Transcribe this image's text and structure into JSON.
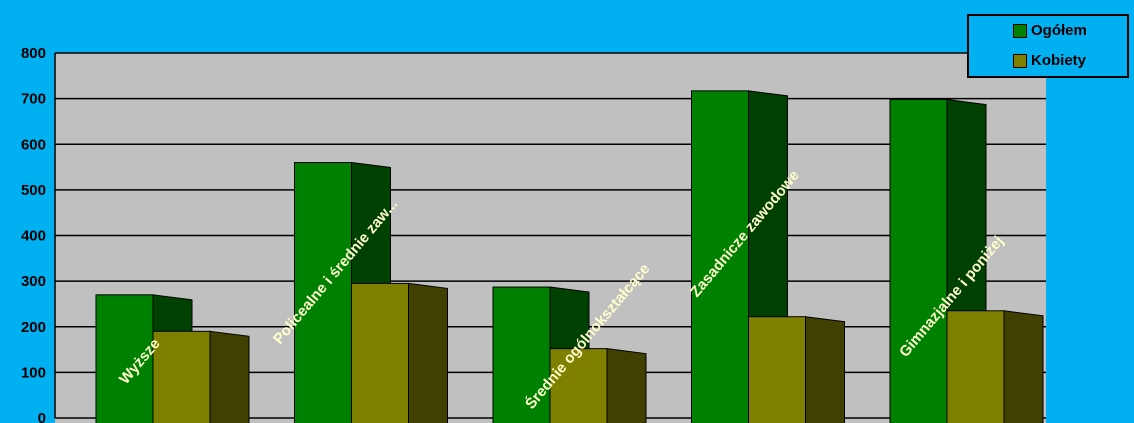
{
  "colors": {
    "background": "#00B0F0",
    "plot_area": "#C0C0C0",
    "ogolem_front": "#008000",
    "ogolem_side": "#004000",
    "kobiety_front": "#808000",
    "kobiety_side": "#404000",
    "category_label": "#FFFFCC"
  },
  "chart_data": {
    "type": "bar",
    "categories": [
      "Wyższe",
      "Policealne i średnie zaw...",
      "Średnie ogólnokształcące",
      "Zasadnicze zawodowe",
      "Gimnazjalne i poniżej"
    ],
    "series": [
      {
        "name": "Ogółem",
        "values": [
          270,
          560,
          287,
          717,
          698
        ]
      },
      {
        "name": "Kobiety",
        "values": [
          190,
          295,
          152,
          222,
          235
        ]
      }
    ],
    "ylim": [
      0,
      800
    ],
    "yticks": [
      "0",
      "100",
      "200",
      "300",
      "400",
      "500",
      "600",
      "700",
      "800"
    ],
    "grid": true,
    "legend_position": "top-right"
  }
}
